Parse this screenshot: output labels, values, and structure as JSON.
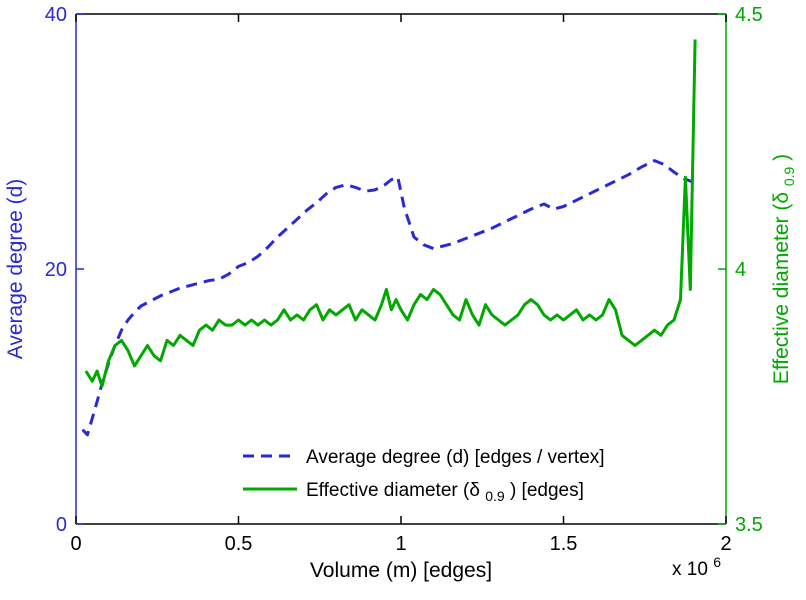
{
  "chart_data": {
    "type": "line",
    "title": "",
    "xlabel": "Volume (m) [edges]",
    "ylabel_left": "Average degree (d)",
    "ylabel_right_parts": {
      "pre": "Effective diameter (δ",
      "sub": "0.9",
      "post": ")"
    },
    "x_multiplier": {
      "pre": "x 10",
      "sup": "6"
    },
    "xlim": [
      0,
      2
    ],
    "ylim_left": [
      0,
      40
    ],
    "ylim_right": [
      3.5,
      4.5
    ],
    "x_ticks": [
      0,
      0.5,
      1,
      1.5,
      2
    ],
    "x_tick_labels": [
      "0",
      "0.5",
      "1",
      "1.5",
      "2"
    ],
    "y_ticks_left": [
      0,
      20,
      40
    ],
    "y_tick_labels_left": [
      "0",
      "20",
      "40"
    ],
    "y_ticks_right": [
      3.5,
      4,
      4.5
    ],
    "y_tick_labels_right": [
      "3.5",
      "4",
      "4.5"
    ],
    "grid": false,
    "legend_position": "lower-center-right-inside",
    "colors": {
      "axis": "#000000",
      "left": "#2929d6",
      "right": "#00a800"
    },
    "legend": [
      {
        "label": "Average degree (d) [edges / vertex]",
        "color": "#2929d6",
        "style": "dashed",
        "axis": "left"
      },
      {
        "label": "Effective diameter (δ0.9) [edges]",
        "pre": "Effective diameter (δ",
        "sub": "0.9",
        "post": ") [edges]",
        "color": "#00a800",
        "style": "solid",
        "axis": "right"
      }
    ],
    "series": [
      {
        "name": "average-degree",
        "axis": "left",
        "color": "#2929d6",
        "style": "dashed",
        "points": [
          [
            0.02,
            7.4
          ],
          [
            0.035,
            7.0
          ],
          [
            0.05,
            8.3
          ],
          [
            0.065,
            9.6
          ],
          [
            0.08,
            11.0
          ],
          [
            0.1,
            12.6
          ],
          [
            0.12,
            14.0
          ],
          [
            0.14,
            15.2
          ],
          [
            0.16,
            16.0
          ],
          [
            0.18,
            16.6
          ],
          [
            0.2,
            17.1
          ],
          [
            0.23,
            17.5
          ],
          [
            0.26,
            17.9
          ],
          [
            0.29,
            18.2
          ],
          [
            0.32,
            18.5
          ],
          [
            0.35,
            18.7
          ],
          [
            0.38,
            18.9
          ],
          [
            0.41,
            19.1
          ],
          [
            0.44,
            19.2
          ],
          [
            0.47,
            19.6
          ],
          [
            0.5,
            20.2
          ],
          [
            0.53,
            20.5
          ],
          [
            0.56,
            21.0
          ],
          [
            0.59,
            21.7
          ],
          [
            0.62,
            22.5
          ],
          [
            0.65,
            23.2
          ],
          [
            0.68,
            23.9
          ],
          [
            0.71,
            24.6
          ],
          [
            0.74,
            25.2
          ],
          [
            0.77,
            25.9
          ],
          [
            0.8,
            26.4
          ],
          [
            0.83,
            26.6
          ],
          [
            0.86,
            26.4
          ],
          [
            0.89,
            26.1
          ],
          [
            0.92,
            26.2
          ],
          [
            0.95,
            26.6
          ],
          [
            0.97,
            27.0
          ],
          [
            0.99,
            27.2
          ],
          [
            1.01,
            24.8
          ],
          [
            1.04,
            22.5
          ],
          [
            1.07,
            21.9
          ],
          [
            1.1,
            21.6
          ],
          [
            1.13,
            21.8
          ],
          [
            1.16,
            22.0
          ],
          [
            1.2,
            22.4
          ],
          [
            1.24,
            22.8
          ],
          [
            1.28,
            23.2
          ],
          [
            1.32,
            23.7
          ],
          [
            1.36,
            24.2
          ],
          [
            1.4,
            24.7
          ],
          [
            1.44,
            25.1
          ],
          [
            1.47,
            24.7
          ],
          [
            1.5,
            24.9
          ],
          [
            1.54,
            25.4
          ],
          [
            1.58,
            25.9
          ],
          [
            1.62,
            26.4
          ],
          [
            1.66,
            26.9
          ],
          [
            1.7,
            27.4
          ],
          [
            1.74,
            28.0
          ],
          [
            1.78,
            28.5
          ],
          [
            1.81,
            28.2
          ],
          [
            1.84,
            27.6
          ],
          [
            1.87,
            27.1
          ],
          [
            1.9,
            26.8
          ]
        ]
      },
      {
        "name": "effective-diameter",
        "axis": "right",
        "color": "#00a800",
        "style": "solid",
        "points": [
          [
            0.03,
            3.8
          ],
          [
            0.05,
            3.78
          ],
          [
            0.065,
            3.8
          ],
          [
            0.08,
            3.77
          ],
          [
            0.1,
            3.82
          ],
          [
            0.12,
            3.85
          ],
          [
            0.14,
            3.86
          ],
          [
            0.16,
            3.84
          ],
          [
            0.18,
            3.81
          ],
          [
            0.2,
            3.83
          ],
          [
            0.22,
            3.85
          ],
          [
            0.24,
            3.83
          ],
          [
            0.26,
            3.82
          ],
          [
            0.28,
            3.86
          ],
          [
            0.3,
            3.85
          ],
          [
            0.32,
            3.87
          ],
          [
            0.34,
            3.86
          ],
          [
            0.36,
            3.85
          ],
          [
            0.38,
            3.88
          ],
          [
            0.4,
            3.89
          ],
          [
            0.42,
            3.88
          ],
          [
            0.44,
            3.9
          ],
          [
            0.46,
            3.89
          ],
          [
            0.48,
            3.89
          ],
          [
            0.5,
            3.9
          ],
          [
            0.52,
            3.89
          ],
          [
            0.54,
            3.9
          ],
          [
            0.56,
            3.89
          ],
          [
            0.58,
            3.9
          ],
          [
            0.6,
            3.89
          ],
          [
            0.62,
            3.9
          ],
          [
            0.64,
            3.92
          ],
          [
            0.66,
            3.9
          ],
          [
            0.68,
            3.91
          ],
          [
            0.7,
            3.9
          ],
          [
            0.72,
            3.92
          ],
          [
            0.74,
            3.93
          ],
          [
            0.76,
            3.9
          ],
          [
            0.78,
            3.92
          ],
          [
            0.8,
            3.91
          ],
          [
            0.82,
            3.92
          ],
          [
            0.84,
            3.93
          ],
          [
            0.86,
            3.9
          ],
          [
            0.88,
            3.92
          ],
          [
            0.9,
            3.91
          ],
          [
            0.92,
            3.9
          ],
          [
            0.94,
            3.93
          ],
          [
            0.955,
            3.96
          ],
          [
            0.97,
            3.92
          ],
          [
            0.985,
            3.94
          ],
          [
            1.0,
            3.92
          ],
          [
            1.02,
            3.9
          ],
          [
            1.04,
            3.93
          ],
          [
            1.06,
            3.95
          ],
          [
            1.08,
            3.94
          ],
          [
            1.1,
            3.96
          ],
          [
            1.12,
            3.95
          ],
          [
            1.14,
            3.93
          ],
          [
            1.16,
            3.91
          ],
          [
            1.18,
            3.9
          ],
          [
            1.2,
            3.94
          ],
          [
            1.22,
            3.91
          ],
          [
            1.24,
            3.89
          ],
          [
            1.26,
            3.93
          ],
          [
            1.28,
            3.91
          ],
          [
            1.3,
            3.9
          ],
          [
            1.32,
            3.89
          ],
          [
            1.34,
            3.9
          ],
          [
            1.36,
            3.91
          ],
          [
            1.38,
            3.93
          ],
          [
            1.4,
            3.94
          ],
          [
            1.42,
            3.93
          ],
          [
            1.44,
            3.91
          ],
          [
            1.46,
            3.9
          ],
          [
            1.48,
            3.91
          ],
          [
            1.5,
            3.9
          ],
          [
            1.52,
            3.91
          ],
          [
            1.54,
            3.92
          ],
          [
            1.56,
            3.9
          ],
          [
            1.58,
            3.91
          ],
          [
            1.6,
            3.9
          ],
          [
            1.62,
            3.91
          ],
          [
            1.64,
            3.94
          ],
          [
            1.66,
            3.92
          ],
          [
            1.68,
            3.87
          ],
          [
            1.7,
            3.86
          ],
          [
            1.72,
            3.85
          ],
          [
            1.74,
            3.86
          ],
          [
            1.76,
            3.87
          ],
          [
            1.78,
            3.88
          ],
          [
            1.8,
            3.87
          ],
          [
            1.82,
            3.89
          ],
          [
            1.84,
            3.9
          ],
          [
            1.86,
            3.94
          ],
          [
            1.875,
            4.18
          ],
          [
            1.89,
            3.96
          ],
          [
            1.905,
            4.45
          ]
        ]
      }
    ]
  }
}
